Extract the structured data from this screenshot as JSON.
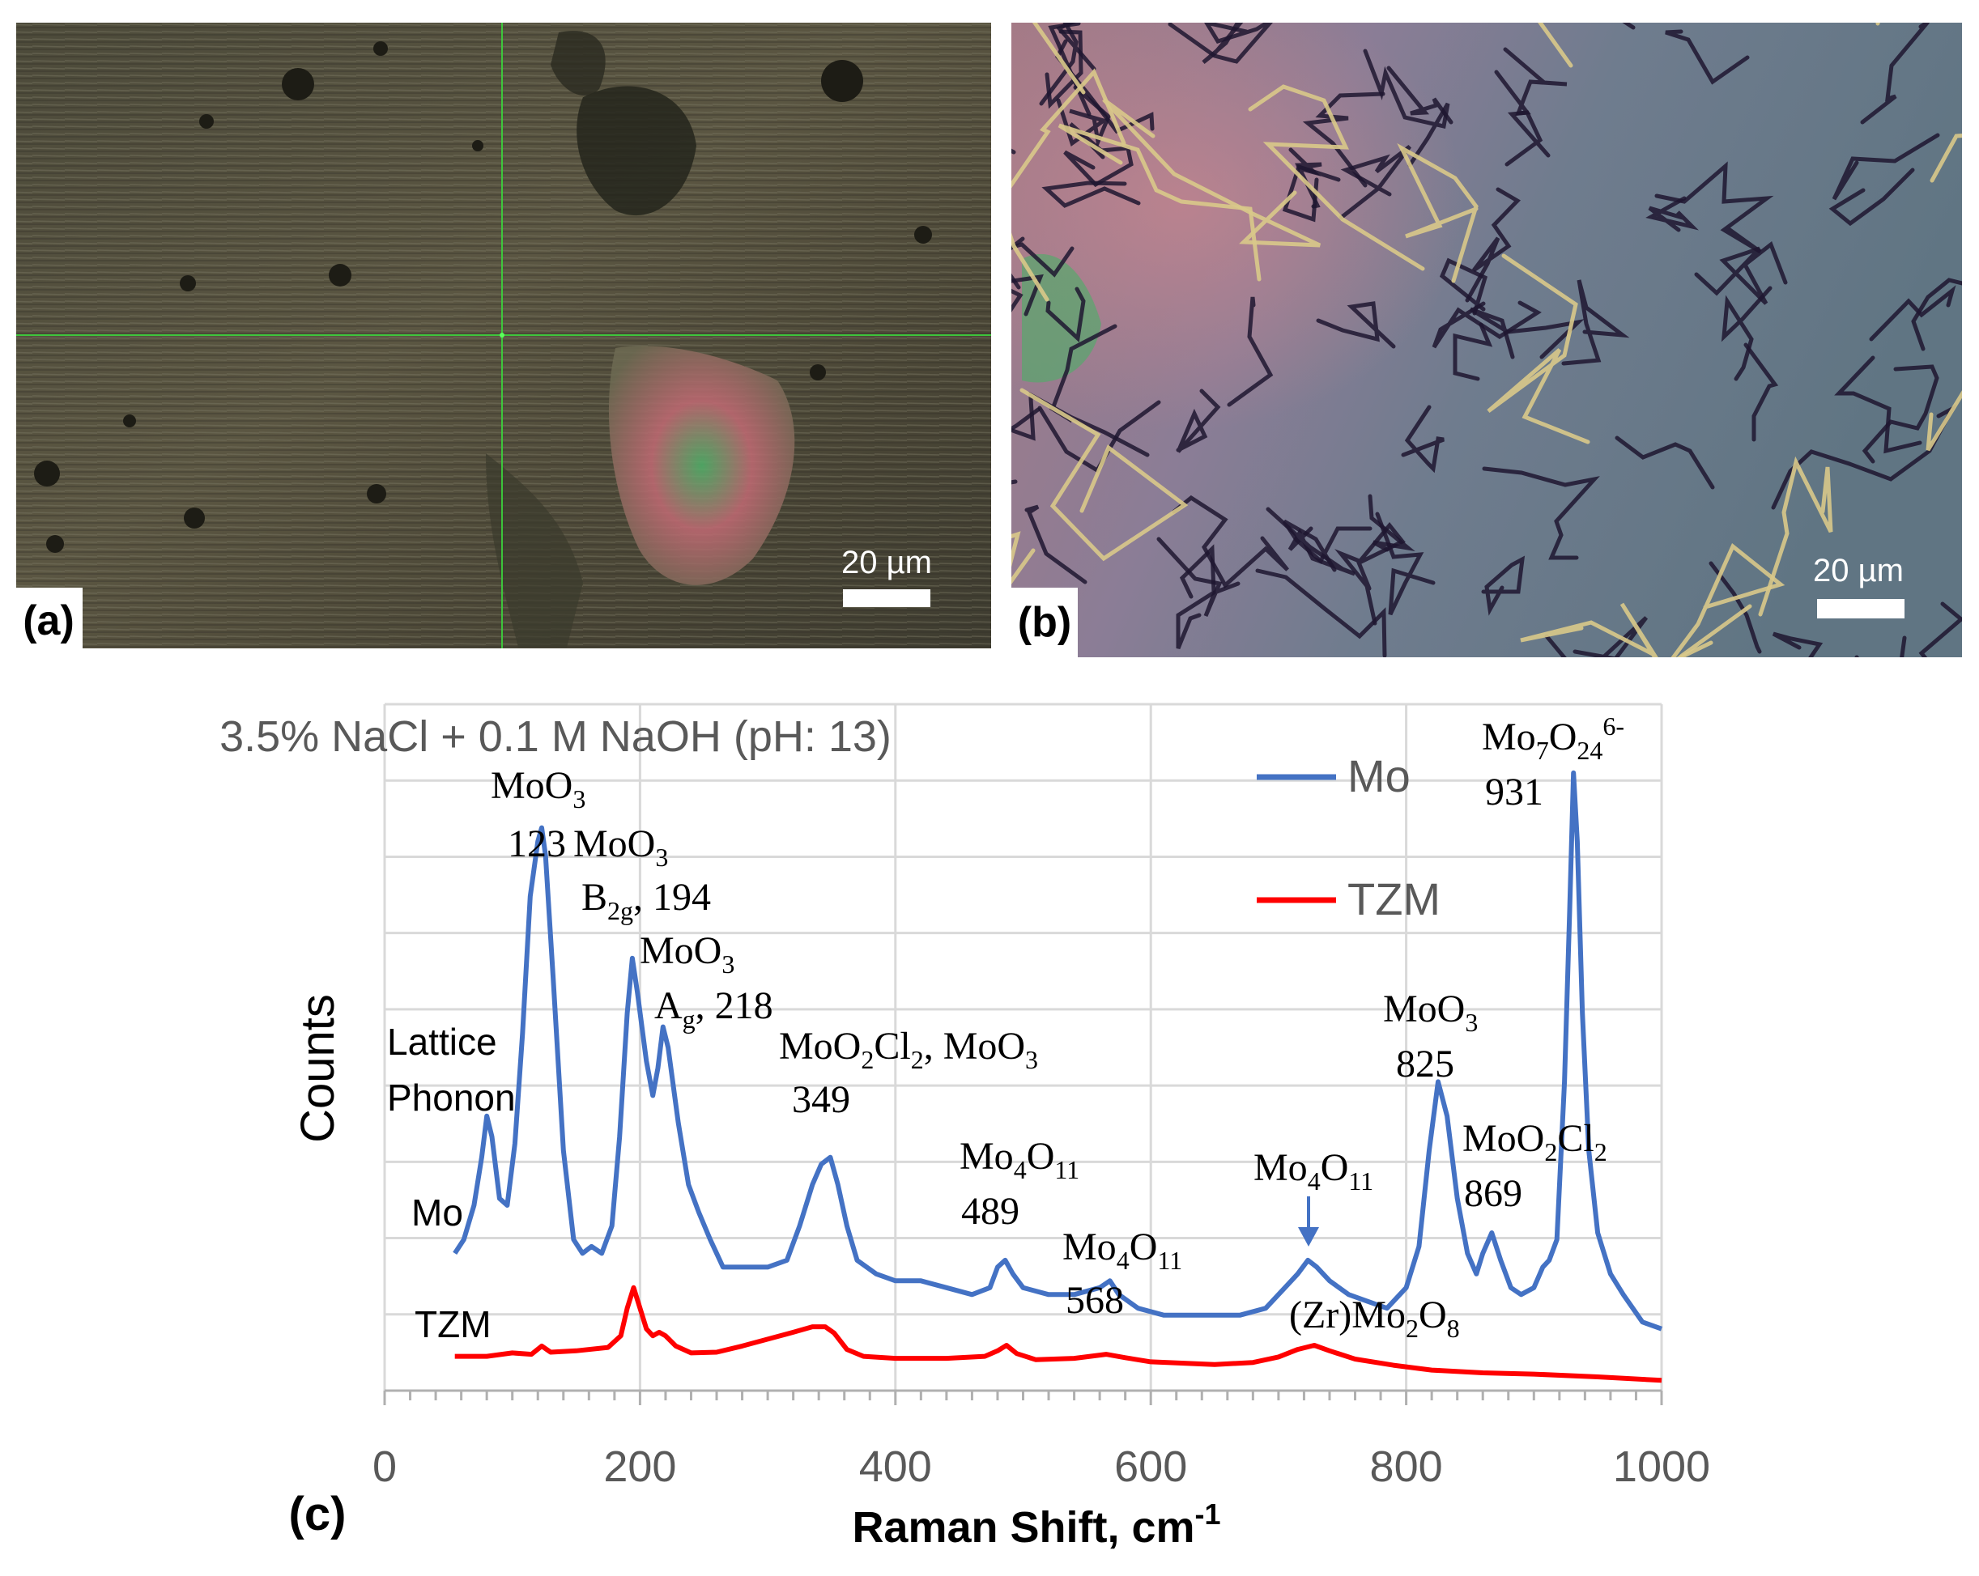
{
  "figure": {
    "panels": [
      {
        "label": "(a)",
        "scale_bar": "20 µm"
      },
      {
        "label": "(b)",
        "scale_bar": "20 µm"
      }
    ],
    "chart_label": "(c)"
  },
  "chart_data": {
    "type": "line",
    "title": "3.5% NaCl + 0.1 M NaOH (pH: 13)",
    "xlabel": "Raman Shift, cm",
    "xlabel_sup": "-1",
    "ylabel": "Counts",
    "xlim": [
      0,
      1000
    ],
    "ylim": [
      0,
      100
    ],
    "x_ticks": [
      "0",
      "200",
      "400",
      "600",
      "800",
      "1000"
    ],
    "grid": true,
    "legend_position": "top-right",
    "series": [
      {
        "name": "Mo",
        "color": "#4472c4",
        "points": [
          [
            55,
            20
          ],
          [
            62,
            22
          ],
          [
            70,
            27
          ],
          [
            76,
            34
          ],
          [
            80,
            40
          ],
          [
            84,
            37
          ],
          [
            90,
            28
          ],
          [
            96,
            27
          ],
          [
            102,
            36
          ],
          [
            108,
            52
          ],
          [
            114,
            72
          ],
          [
            120,
            80
          ],
          [
            123,
            82
          ],
          [
            126,
            78
          ],
          [
            132,
            60
          ],
          [
            140,
            35
          ],
          [
            148,
            22
          ],
          [
            155,
            20
          ],
          [
            162,
            21
          ],
          [
            170,
            20
          ],
          [
            178,
            24
          ],
          [
            184,
            37
          ],
          [
            190,
            55
          ],
          [
            194,
            63
          ],
          [
            198,
            58
          ],
          [
            205,
            48
          ],
          [
            210,
            43
          ],
          [
            214,
            47
          ],
          [
            218,
            53
          ],
          [
            222,
            50
          ],
          [
            230,
            39
          ],
          [
            238,
            30
          ],
          [
            246,
            26
          ],
          [
            255,
            22
          ],
          [
            265,
            18
          ],
          [
            280,
            18
          ],
          [
            300,
            18
          ],
          [
            315,
            19
          ],
          [
            325,
            24
          ],
          [
            335,
            30
          ],
          [
            342,
            33
          ],
          [
            349,
            34
          ],
          [
            355,
            30
          ],
          [
            362,
            24
          ],
          [
            370,
            19
          ],
          [
            385,
            17
          ],
          [
            400,
            16
          ],
          [
            420,
            16
          ],
          [
            440,
            15
          ],
          [
            460,
            14
          ],
          [
            474,
            15
          ],
          [
            480,
            18
          ],
          [
            486,
            19
          ],
          [
            492,
            17
          ],
          [
            500,
            15
          ],
          [
            520,
            14
          ],
          [
            540,
            14
          ],
          [
            560,
            15
          ],
          [
            568,
            16
          ],
          [
            575,
            14
          ],
          [
            590,
            12
          ],
          [
            610,
            11
          ],
          [
            640,
            11
          ],
          [
            670,
            11
          ],
          [
            690,
            12
          ],
          [
            705,
            15
          ],
          [
            715,
            17
          ],
          [
            723,
            19
          ],
          [
            730,
            18
          ],
          [
            740,
            16
          ],
          [
            755,
            14
          ],
          [
            770,
            13
          ],
          [
            785,
            12
          ],
          [
            800,
            15
          ],
          [
            810,
            21
          ],
          [
            818,
            35
          ],
          [
            825,
            45
          ],
          [
            832,
            40
          ],
          [
            840,
            28
          ],
          [
            848,
            20
          ],
          [
            855,
            17
          ],
          [
            860,
            20
          ],
          [
            867,
            23
          ],
          [
            874,
            19
          ],
          [
            882,
            15
          ],
          [
            890,
            14
          ],
          [
            900,
            15
          ],
          [
            907,
            18
          ],
          [
            912,
            19
          ],
          [
            918,
            22
          ],
          [
            924,
            45
          ],
          [
            928,
            70
          ],
          [
            931,
            90
          ],
          [
            934,
            80
          ],
          [
            938,
            55
          ],
          [
            943,
            35
          ],
          [
            950,
            23
          ],
          [
            960,
            17
          ],
          [
            970,
            14
          ],
          [
            985,
            10
          ],
          [
            1000,
            9
          ]
        ]
      },
      {
        "name": "TZM",
        "color": "#ff0000",
        "points": [
          [
            55,
            5
          ],
          [
            80,
            5
          ],
          [
            100,
            5.5
          ],
          [
            115,
            5.3
          ],
          [
            123,
            6.5
          ],
          [
            130,
            5.6
          ],
          [
            150,
            5.8
          ],
          [
            175,
            6.3
          ],
          [
            185,
            8
          ],
          [
            190,
            12
          ],
          [
            195,
            15
          ],
          [
            200,
            12
          ],
          [
            205,
            9
          ],
          [
            210,
            8
          ],
          [
            215,
            8.5
          ],
          [
            220,
            8
          ],
          [
            228,
            6.5
          ],
          [
            240,
            5.5
          ],
          [
            260,
            5.6
          ],
          [
            280,
            6.5
          ],
          [
            300,
            7.5
          ],
          [
            320,
            8.5
          ],
          [
            335,
            9.3
          ],
          [
            345,
            9.3
          ],
          [
            352,
            8.4
          ],
          [
            362,
            6
          ],
          [
            375,
            5
          ],
          [
            400,
            4.7
          ],
          [
            440,
            4.7
          ],
          [
            470,
            5
          ],
          [
            480,
            5.8
          ],
          [
            487,
            6.6
          ],
          [
            495,
            5.4
          ],
          [
            510,
            4.5
          ],
          [
            540,
            4.7
          ],
          [
            565,
            5.3
          ],
          [
            580,
            4.8
          ],
          [
            600,
            4.2
          ],
          [
            650,
            3.8
          ],
          [
            680,
            4.1
          ],
          [
            700,
            4.9
          ],
          [
            715,
            6
          ],
          [
            728,
            6.6
          ],
          [
            740,
            5.8
          ],
          [
            760,
            4.6
          ],
          [
            790,
            3.7
          ],
          [
            820,
            3
          ],
          [
            860,
            2.6
          ],
          [
            900,
            2.4
          ],
          [
            950,
            2
          ],
          [
            1000,
            1.5
          ]
        ]
      }
    ],
    "annotations": {
      "lattice_phonon": [
        "Lattice",
        "Phonon"
      ],
      "moo3_123": {
        "formula": "MoO",
        "sub": "3",
        "value": "123"
      },
      "moo3_194": {
        "formula": "MoO",
        "sub": "3",
        "mode": "B",
        "mode_sub": "2g",
        "value": ",  194"
      },
      "moo3_218": {
        "formula": "MoO",
        "sub": "3",
        "mode": "A",
        "mode_sub": "g",
        "value": ", 218"
      },
      "moo2cl2_349": {
        "f1": "MoO",
        "f1_sub1": "2",
        "f1_mid": "Cl",
        "f1_sub2": "2",
        "sep": ",  MoO",
        "f2_sub": "3",
        "value": "349"
      },
      "mo4o11_489": {
        "formula": "Mo",
        "sub1": "4",
        "mid": "O",
        "sub2": "11",
        "value": "489"
      },
      "mo4o11_568": {
        "formula": "Mo",
        "sub1": "4",
        "mid": "O",
        "sub2": "11",
        "value": "568"
      },
      "mo4o11_725": {
        "formula": "Mo",
        "sub1": "4",
        "mid": "O",
        "sub2": "11"
      },
      "zrmo2o8": {
        "prefix": "(Zr)Mo",
        "sub1": "2",
        "mid": "O",
        "sub2": "8"
      },
      "moo3_825": {
        "formula": "MoO",
        "sub": "3",
        "value": "825"
      },
      "moo2cl2_869": {
        "f": "MoO",
        "sub1": "2",
        "mid": "Cl",
        "sub2": "2",
        "value": "869"
      },
      "mo7o24_931": {
        "f": "Mo",
        "sub1": "7",
        "mid": "O",
        "sub2": "24",
        "sup": "6-",
        "value": "931"
      },
      "mo_curve": "Mo",
      "tzm_curve": "TZM"
    }
  }
}
